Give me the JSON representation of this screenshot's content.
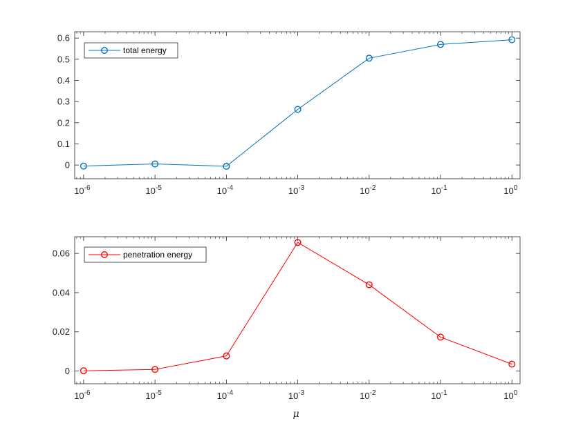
{
  "chart_data": [
    {
      "type": "line",
      "xscale": "log",
      "x": [
        1e-06,
        1e-05,
        0.0001,
        0.001,
        0.01,
        0.1,
        1
      ],
      "xlim": [
        7.5e-07,
        1.3
      ],
      "ylim": [
        -0.065,
        0.63
      ],
      "xticks": [
        {
          "base": "10",
          "exp": "-6"
        },
        {
          "base": "10",
          "exp": "-5"
        },
        {
          "base": "10",
          "exp": "-4"
        },
        {
          "base": "10",
          "exp": "-3"
        },
        {
          "base": "10",
          "exp": "-2"
        },
        {
          "base": "10",
          "exp": "-1"
        },
        {
          "base": "10",
          "exp": "0"
        }
      ],
      "yticks": [
        "0",
        "0.1",
        "0.2",
        "0.3",
        "0.4",
        "0.5",
        "0.6"
      ],
      "ytick_values": [
        0,
        0.1,
        0.2,
        0.3,
        0.4,
        0.5,
        0.6
      ],
      "grid": false,
      "legend_position": "top-left",
      "xlabel": "",
      "series": [
        {
          "name": "total energy",
          "color": "#0072BD",
          "marker": "circle",
          "values": [
            -0.005,
            0.005,
            -0.006,
            0.263,
            0.505,
            0.57,
            0.592
          ]
        }
      ]
    },
    {
      "type": "line",
      "xscale": "log",
      "x": [
        1e-06,
        1e-05,
        0.0001,
        0.001,
        0.01,
        0.1,
        1
      ],
      "xlim": [
        7.5e-07,
        1.3
      ],
      "ylim": [
        -0.0065,
        0.0685
      ],
      "xticks": [
        {
          "base": "10",
          "exp": "-6"
        },
        {
          "base": "10",
          "exp": "-5"
        },
        {
          "base": "10",
          "exp": "-4"
        },
        {
          "base": "10",
          "exp": "-3"
        },
        {
          "base": "10",
          "exp": "-2"
        },
        {
          "base": "10",
          "exp": "-1"
        },
        {
          "base": "10",
          "exp": "0"
        }
      ],
      "yticks": [
        "0",
        "0.02",
        "0.04",
        "0.06"
      ],
      "ytick_values": [
        0,
        0.02,
        0.04,
        0.06
      ],
      "grid": false,
      "legend_position": "top-left",
      "xlabel": "μ",
      "series": [
        {
          "name": "penetration energy",
          "color": "#FF0000",
          "marker": "circle",
          "values": [
            0.0001,
            0.0008,
            0.0077,
            0.0656,
            0.044,
            0.0173,
            0.0035
          ]
        }
      ]
    }
  ]
}
